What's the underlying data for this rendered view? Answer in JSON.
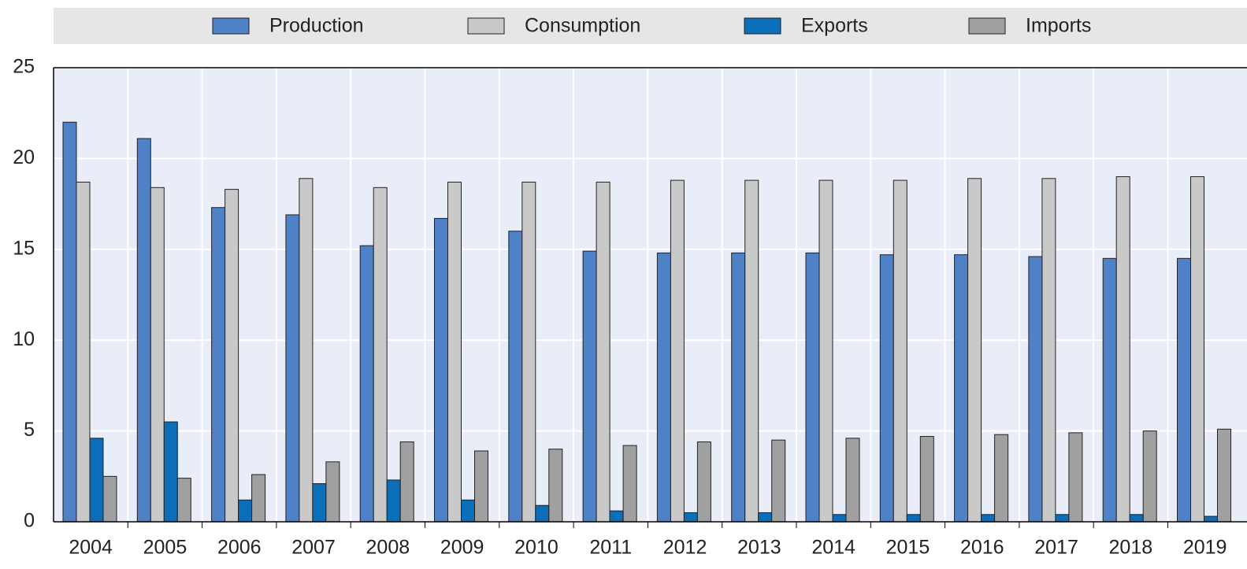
{
  "chart_data": {
    "type": "bar",
    "categories": [
      "2004",
      "2005",
      "2006",
      "2007",
      "2008",
      "2009",
      "2010",
      "2011",
      "2012",
      "2013",
      "2014",
      "2015",
      "2016",
      "2017",
      "2018",
      "2019"
    ],
    "series": [
      {
        "name": "Production",
        "color": "#4f81c7",
        "values": [
          22.0,
          21.1,
          17.3,
          16.9,
          15.2,
          16.7,
          16.0,
          14.9,
          14.8,
          14.8,
          14.8,
          14.7,
          14.7,
          14.6,
          14.5,
          14.5
        ]
      },
      {
        "name": "Consumption",
        "color": "#c9c9c9",
        "values": [
          18.7,
          18.4,
          18.3,
          18.9,
          18.4,
          18.7,
          18.7,
          18.7,
          18.8,
          18.8,
          18.8,
          18.8,
          18.9,
          18.9,
          19.0,
          19.0
        ]
      },
      {
        "name": "Exports",
        "color": "#0b6eb8",
        "values": [
          4.6,
          5.5,
          1.2,
          2.1,
          2.3,
          1.2,
          0.9,
          0.6,
          0.5,
          0.5,
          0.4,
          0.4,
          0.4,
          0.4,
          0.4,
          0.3
        ]
      },
      {
        "name": "Imports",
        "color": "#a0a0a0",
        "values": [
          2.5,
          2.4,
          2.6,
          3.3,
          4.4,
          3.9,
          4.0,
          4.2,
          4.4,
          4.5,
          4.6,
          4.7,
          4.8,
          4.9,
          5.0,
          5.1
        ]
      }
    ],
    "ylim": [
      0,
      25
    ],
    "yticks": [
      0,
      5,
      10,
      15,
      20,
      25
    ],
    "grid": true,
    "legend": "top"
  }
}
